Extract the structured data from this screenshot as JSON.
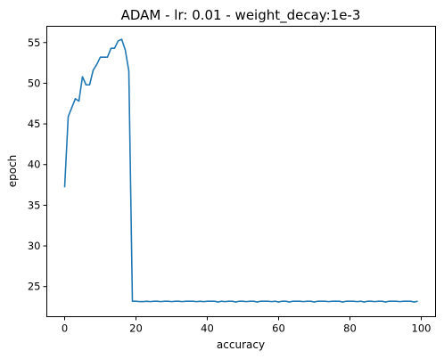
{
  "chart_data": {
    "type": "line",
    "title": "ADAM - lr: 0.01 - weight_decay:1e-3",
    "xlabel": "accuracy",
    "ylabel": "epoch",
    "xlim": [
      -5,
      104
    ],
    "ylim": [
      21.3,
      57.0
    ],
    "xticks": [
      0,
      20,
      40,
      60,
      80,
      100
    ],
    "yticks": [
      25,
      30,
      35,
      40,
      45,
      50,
      55
    ],
    "grid": false,
    "color": "#1f77b4",
    "series": [
      {
        "x": [
          0,
          1,
          2,
          3,
          4,
          5,
          6,
          7,
          8,
          9,
          10,
          11,
          12,
          13,
          14,
          15,
          16,
          17,
          18,
          19,
          20,
          21,
          22,
          23,
          24,
          25,
          26,
          27,
          28,
          29,
          30,
          31,
          32,
          33,
          34,
          35,
          36,
          37,
          38,
          39,
          40,
          41,
          42,
          43,
          44,
          45,
          46,
          47,
          48,
          49,
          50,
          51,
          52,
          53,
          54,
          55,
          56,
          57,
          58,
          59,
          60,
          61,
          62,
          63,
          64,
          65,
          66,
          67,
          68,
          69,
          70,
          71,
          72,
          73,
          74,
          75,
          76,
          77,
          78,
          79,
          80,
          81,
          82,
          83,
          84,
          85,
          86,
          87,
          88,
          89,
          90,
          91,
          92,
          93,
          94,
          95,
          96,
          97,
          98,
          99
        ],
        "values": [
          37.2,
          45.9,
          47.0,
          48.1,
          47.8,
          50.8,
          49.8,
          49.8,
          51.6,
          52.3,
          53.2,
          53.2,
          53.2,
          54.3,
          54.3,
          55.2,
          55.4,
          54.1,
          51.5,
          23.2,
          23.2,
          23.15,
          23.15,
          23.2,
          23.15,
          23.2,
          23.2,
          23.15,
          23.2,
          23.2,
          23.15,
          23.2,
          23.2,
          23.15,
          23.2,
          23.2,
          23.2,
          23.15,
          23.2,
          23.15,
          23.2,
          23.2,
          23.2,
          23.1,
          23.2,
          23.15,
          23.2,
          23.2,
          23.1,
          23.2,
          23.2,
          23.15,
          23.2,
          23.2,
          23.1,
          23.2,
          23.2,
          23.2,
          23.15,
          23.2,
          23.1,
          23.2,
          23.2,
          23.1,
          23.2,
          23.2,
          23.2,
          23.15,
          23.2,
          23.2,
          23.1,
          23.2,
          23.2,
          23.2,
          23.15,
          23.2,
          23.2,
          23.2,
          23.1,
          23.2,
          23.2,
          23.2,
          23.15,
          23.2,
          23.1,
          23.2,
          23.2,
          23.15,
          23.2,
          23.2,
          23.1,
          23.2,
          23.2,
          23.2,
          23.15,
          23.2,
          23.2,
          23.2,
          23.1,
          23.2
        ]
      }
    ]
  }
}
